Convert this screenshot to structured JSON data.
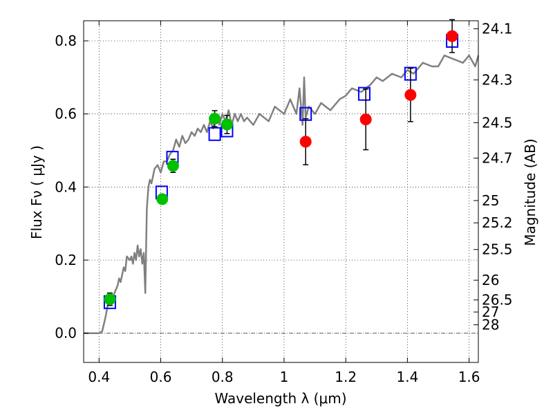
{
  "chart_data": {
    "type": "scatter",
    "title": "",
    "xlabel": "Wavelength  λ (μm)",
    "ylabel": "Flux  Fν ( μJy )",
    "ylabel_right": "Magnitude (AB)",
    "xlim": [
      0.35,
      1.63
    ],
    "ylim": [
      -0.08,
      0.855
    ],
    "grid": true,
    "x_ticks": [
      0.4,
      0.6,
      0.8,
      1.0,
      1.2,
      1.4,
      1.6
    ],
    "x_tick_labels": [
      "0.4",
      "0.6",
      "0.8",
      "1",
      "1.2",
      "1.4",
      "1.6"
    ],
    "y_ticks": [
      0.0,
      0.2,
      0.4,
      0.6,
      0.8
    ],
    "y_tick_labels": [
      "0.0",
      "0.2",
      "0.4",
      "0.6",
      "0.8"
    ],
    "right_ticks": [
      {
        "label": "24.1",
        "flux": 0.833
      },
      {
        "label": "24.3",
        "flux": 0.693
      },
      {
        "label": "24.5",
        "flux": 0.576
      },
      {
        "label": "24.7",
        "flux": 0.479
      },
      {
        "label": "25",
        "flux": 0.363
      },
      {
        "label": "25.2",
        "flux": 0.302
      },
      {
        "label": "25.5",
        "flux": 0.229
      },
      {
        "label": "26",
        "flux": 0.145
      },
      {
        "label": "26.5",
        "flux": 0.091
      },
      {
        "label": "27",
        "flux": 0.058
      },
      {
        "label": "28",
        "flux": 0.023
      }
    ],
    "series": [
      {
        "name": "Model SED",
        "kind": "line",
        "color": "#808080",
        "x": [
          0.35,
          0.375,
          0.39,
          0.4,
          0.41,
          0.42,
          0.43,
          0.435,
          0.44,
          0.45,
          0.46,
          0.465,
          0.47,
          0.48,
          0.485,
          0.49,
          0.5,
          0.505,
          0.51,
          0.515,
          0.52,
          0.525,
          0.53,
          0.535,
          0.54,
          0.545,
          0.55,
          0.555,
          0.56,
          0.565,
          0.57,
          0.575,
          0.58,
          0.59,
          0.6,
          0.61,
          0.62,
          0.625,
          0.63,
          0.64,
          0.65,
          0.66,
          0.67,
          0.68,
          0.69,
          0.7,
          0.71,
          0.72,
          0.73,
          0.74,
          0.75,
          0.76,
          0.77,
          0.78,
          0.79,
          0.8,
          0.81,
          0.82,
          0.83,
          0.84,
          0.85,
          0.86,
          0.87,
          0.88,
          0.9,
          0.92,
          0.95,
          0.97,
          1.0,
          1.02,
          1.04,
          1.05,
          1.06,
          1.065,
          1.07,
          1.08,
          1.1,
          1.12,
          1.15,
          1.18,
          1.2,
          1.22,
          1.25,
          1.28,
          1.3,
          1.32,
          1.35,
          1.38,
          1.4,
          1.42,
          1.45,
          1.48,
          1.5,
          1.52,
          1.55,
          1.58,
          1.6,
          1.62,
          1.63
        ],
        "y": [
          0.0,
          0.0,
          0.0,
          0.0,
          0.005,
          0.04,
          0.085,
          0.09,
          0.09,
          0.11,
          0.13,
          0.15,
          0.14,
          0.18,
          0.17,
          0.21,
          0.2,
          0.21,
          0.19,
          0.22,
          0.2,
          0.24,
          0.21,
          0.23,
          0.19,
          0.22,
          0.11,
          0.34,
          0.4,
          0.42,
          0.41,
          0.43,
          0.45,
          0.46,
          0.44,
          0.47,
          0.47,
          0.48,
          0.49,
          0.5,
          0.53,
          0.51,
          0.54,
          0.52,
          0.53,
          0.55,
          0.54,
          0.56,
          0.55,
          0.57,
          0.55,
          0.58,
          0.56,
          0.6,
          0.57,
          0.6,
          0.58,
          0.61,
          0.57,
          0.6,
          0.58,
          0.6,
          0.58,
          0.59,
          0.57,
          0.6,
          0.58,
          0.62,
          0.6,
          0.64,
          0.6,
          0.67,
          0.57,
          0.7,
          0.59,
          0.62,
          0.6,
          0.63,
          0.61,
          0.64,
          0.65,
          0.67,
          0.66,
          0.68,
          0.7,
          0.69,
          0.71,
          0.7,
          0.72,
          0.71,
          0.74,
          0.73,
          0.73,
          0.76,
          0.75,
          0.74,
          0.76,
          0.73,
          0.76
        ]
      },
      {
        "name": "Model photometry",
        "kind": "open-square",
        "color": "#0000ff",
        "x": [
          0.435,
          0.603,
          0.638,
          0.775,
          0.815,
          1.07,
          1.26,
          1.41,
          1.545
        ],
        "y": [
          0.085,
          0.385,
          0.48,
          0.545,
          0.555,
          0.6,
          0.655,
          0.71,
          0.8
        ]
      },
      {
        "name": "Observed (green)",
        "kind": "filled-circle",
        "color": "#00c000",
        "x": [
          0.435,
          0.605,
          0.64,
          0.775,
          0.815
        ],
        "y": [
          0.093,
          0.367,
          0.458,
          0.587,
          0.571
        ],
        "yerr": [
          0.017,
          0.012,
          0.018,
          0.022,
          0.025
        ]
      },
      {
        "name": "Observed (red)",
        "kind": "filled-circle",
        "color": "#ff0000",
        "x": [
          1.07,
          1.265,
          1.41,
          1.545
        ],
        "y": [
          0.524,
          0.585,
          0.652,
          0.813
        ],
        "yerr": [
          0.063,
          0.083,
          0.073,
          0.045
        ]
      }
    ]
  }
}
